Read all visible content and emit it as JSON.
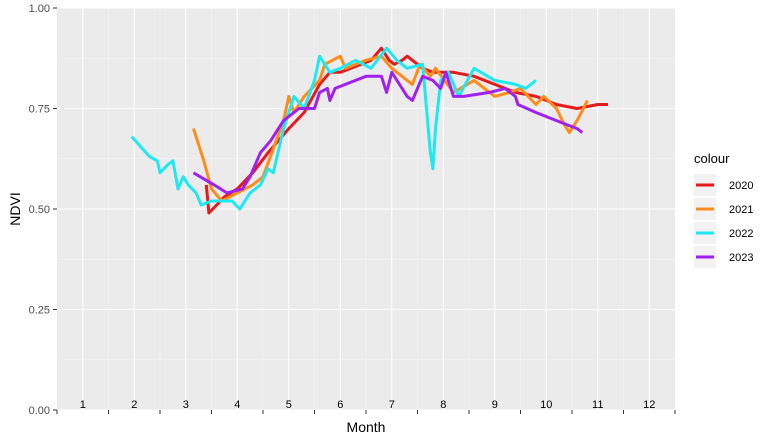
{
  "chart_data": {
    "type": "line",
    "title": "",
    "xlabel": "Month",
    "ylabel": "NDVI",
    "ylim": [
      0,
      1
    ],
    "xlim": [
      0.5,
      12.5
    ],
    "y_ticks": [
      "0.00",
      "0.25",
      "0.50",
      "0.75",
      "1.00"
    ],
    "y_tick_values": [
      0,
      0.25,
      0.5,
      0.75,
      1.0
    ],
    "month_labels": [
      "1",
      "2",
      "3",
      "4",
      "5",
      "6",
      "7",
      "8",
      "9",
      "10",
      "11",
      "12"
    ],
    "grid": true,
    "legend": {
      "title": "colour",
      "position": "right"
    },
    "series": [
      {
        "name": "2020",
        "color": "#e41a1c",
        "points": [
          [
            3.4,
            0.56
          ],
          [
            3.45,
            0.49
          ],
          [
            3.6,
            0.51
          ],
          [
            3.75,
            0.53
          ],
          [
            4.0,
            0.55
          ],
          [
            4.3,
            0.59
          ],
          [
            4.6,
            0.64
          ],
          [
            4.8,
            0.67
          ],
          [
            5.0,
            0.7
          ],
          [
            5.3,
            0.74
          ],
          [
            5.6,
            0.81
          ],
          [
            5.8,
            0.84
          ],
          [
            6.0,
            0.84
          ],
          [
            6.2,
            0.85
          ],
          [
            6.6,
            0.87
          ],
          [
            6.8,
            0.9
          ],
          [
            6.95,
            0.87
          ],
          [
            7.05,
            0.86
          ],
          [
            7.2,
            0.87
          ],
          [
            7.3,
            0.88
          ],
          [
            7.6,
            0.85
          ],
          [
            7.8,
            0.84
          ],
          [
            8.2,
            0.84
          ],
          [
            8.6,
            0.83
          ],
          [
            9.0,
            0.81
          ],
          [
            9.4,
            0.79
          ],
          [
            9.8,
            0.78
          ],
          [
            10.2,
            0.76
          ],
          [
            10.6,
            0.75
          ],
          [
            11.0,
            0.76
          ],
          [
            11.2,
            0.76
          ]
        ]
      },
      {
        "name": "2021",
        "color": "#ff8c1a",
        "points": [
          [
            3.15,
            0.7
          ],
          [
            3.35,
            0.62
          ],
          [
            3.5,
            0.55
          ],
          [
            3.7,
            0.52
          ],
          [
            4.0,
            0.54
          ],
          [
            4.3,
            0.56
          ],
          [
            4.5,
            0.58
          ],
          [
            4.7,
            0.65
          ],
          [
            4.9,
            0.72
          ],
          [
            5.0,
            0.78
          ],
          [
            5.1,
            0.74
          ],
          [
            5.3,
            0.78
          ],
          [
            5.6,
            0.82
          ],
          [
            5.7,
            0.86
          ],
          [
            6.0,
            0.88
          ],
          [
            6.1,
            0.85
          ],
          [
            6.5,
            0.87
          ],
          [
            6.8,
            0.88
          ],
          [
            7.0,
            0.85
          ],
          [
            7.4,
            0.81
          ],
          [
            7.55,
            0.86
          ],
          [
            7.75,
            0.83
          ],
          [
            7.85,
            0.85
          ],
          [
            8.2,
            0.79
          ],
          [
            8.6,
            0.82
          ],
          [
            9.0,
            0.78
          ],
          [
            9.3,
            0.79
          ],
          [
            9.5,
            0.8
          ],
          [
            9.8,
            0.76
          ],
          [
            9.95,
            0.78
          ],
          [
            10.2,
            0.75
          ],
          [
            10.35,
            0.71
          ],
          [
            10.45,
            0.69
          ],
          [
            10.6,
            0.72
          ],
          [
            10.8,
            0.77
          ]
        ]
      },
      {
        "name": "2022",
        "color": "#1ee8f0",
        "points": [
          [
            1.95,
            0.68
          ],
          [
            2.3,
            0.63
          ],
          [
            2.45,
            0.62
          ],
          [
            2.5,
            0.59
          ],
          [
            2.65,
            0.61
          ],
          [
            2.75,
            0.62
          ],
          [
            2.85,
            0.55
          ],
          [
            2.95,
            0.58
          ],
          [
            3.05,
            0.56
          ],
          [
            3.2,
            0.54
          ],
          [
            3.3,
            0.51
          ],
          [
            3.5,
            0.52
          ],
          [
            3.9,
            0.52
          ],
          [
            4.05,
            0.5
          ],
          [
            4.25,
            0.54
          ],
          [
            4.45,
            0.56
          ],
          [
            4.6,
            0.6
          ],
          [
            4.7,
            0.59
          ],
          [
            4.9,
            0.7
          ],
          [
            5.1,
            0.78
          ],
          [
            5.3,
            0.75
          ],
          [
            5.5,
            0.82
          ],
          [
            5.6,
            0.88
          ],
          [
            5.8,
            0.84
          ],
          [
            6.0,
            0.85
          ],
          [
            6.3,
            0.87
          ],
          [
            6.6,
            0.85
          ],
          [
            6.9,
            0.9
          ],
          [
            7.1,
            0.87
          ],
          [
            7.3,
            0.85
          ],
          [
            7.6,
            0.86
          ],
          [
            7.75,
            0.64
          ],
          [
            7.8,
            0.6
          ],
          [
            7.85,
            0.7
          ],
          [
            7.95,
            0.82
          ],
          [
            8.1,
            0.84
          ],
          [
            8.3,
            0.78
          ],
          [
            8.6,
            0.85
          ],
          [
            9.0,
            0.82
          ],
          [
            9.4,
            0.81
          ],
          [
            9.6,
            0.8
          ],
          [
            9.8,
            0.82
          ]
        ]
      },
      {
        "name": "2023",
        "color": "#a020f0",
        "points": [
          [
            3.15,
            0.59
          ],
          [
            3.55,
            0.56
          ],
          [
            3.8,
            0.54
          ],
          [
            4.1,
            0.55
          ],
          [
            4.25,
            0.58
          ],
          [
            4.45,
            0.64
          ],
          [
            4.65,
            0.67
          ],
          [
            4.9,
            0.72
          ],
          [
            5.2,
            0.75
          ],
          [
            5.5,
            0.75
          ],
          [
            5.6,
            0.79
          ],
          [
            5.75,
            0.8
          ],
          [
            5.8,
            0.77
          ],
          [
            5.9,
            0.8
          ],
          [
            6.5,
            0.83
          ],
          [
            6.8,
            0.83
          ],
          [
            6.9,
            0.79
          ],
          [
            7.0,
            0.84
          ],
          [
            7.3,
            0.78
          ],
          [
            7.4,
            0.77
          ],
          [
            7.6,
            0.83
          ],
          [
            7.8,
            0.82
          ],
          [
            7.95,
            0.8
          ],
          [
            8.05,
            0.84
          ],
          [
            8.2,
            0.78
          ],
          [
            8.4,
            0.78
          ],
          [
            8.9,
            0.79
          ],
          [
            9.2,
            0.8
          ],
          [
            9.4,
            0.78
          ],
          [
            9.45,
            0.76
          ],
          [
            9.8,
            0.74
          ],
          [
            10.2,
            0.72
          ],
          [
            10.6,
            0.7
          ],
          [
            10.7,
            0.69
          ]
        ]
      }
    ]
  }
}
